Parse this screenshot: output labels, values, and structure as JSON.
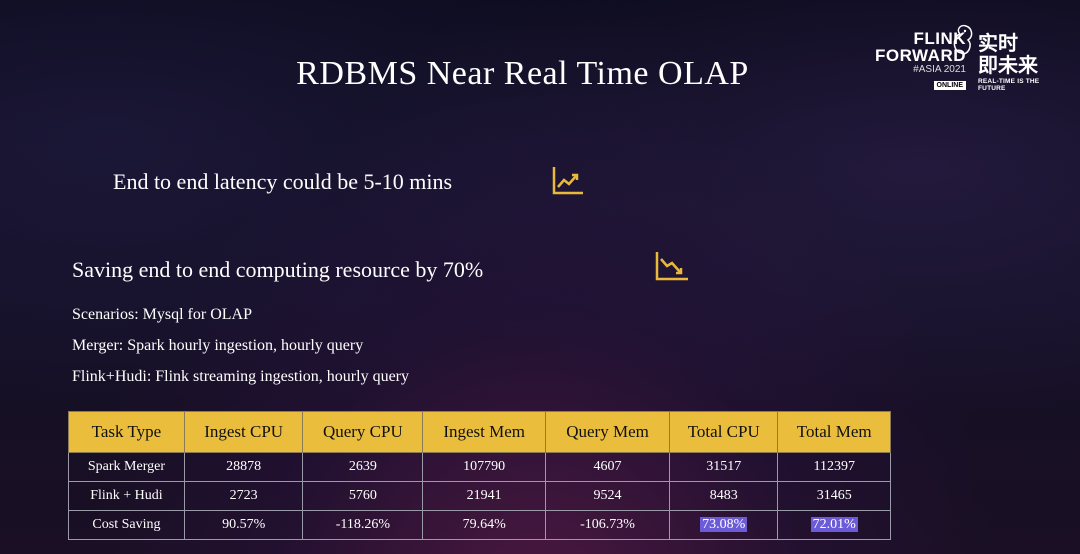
{
  "title": "RDBMS Near Real Time OLAP",
  "logo": {
    "line1": "FLINK",
    "line2": "FORWARD",
    "line3": "#ASIA 2021",
    "badge": "ONLINE",
    "cn_line1": "实时",
    "cn_line2": "即未来",
    "tagline": "REAL-TIME IS THE FUTURE"
  },
  "bullets": {
    "latency": "End to end latency could be 5-10 mins",
    "saving": "Saving end to end computing resource by 70%"
  },
  "icons": {
    "latency": "chart-trend-up-icon",
    "saving": "chart-trend-down-icon",
    "color": "#e9b93b"
  },
  "notes": {
    "scenarios": "Scenarios: Mysql for OLAP",
    "merger": "Merger: Spark hourly ingestion, hourly query",
    "flink_hudi": "Flink+Hudi: Flink streaming ingestion, hourly query"
  },
  "table": {
    "header_color": "#ebbd3c",
    "highlight_color": "#6c5bd6",
    "headers": [
      "Task Type",
      "Ingest CPU",
      "Query CPU",
      "Ingest Mem",
      "Query Mem",
      "Total CPU",
      "Total Mem"
    ],
    "rows": [
      [
        "Spark Merger",
        "28878",
        "2639",
        "107790",
        "4607",
        "31517",
        "112397"
      ],
      [
        "Flink + Hudi",
        "2723",
        "5760",
        "21941",
        "9524",
        "8483",
        "31465"
      ],
      [
        "Cost Saving",
        "90.57%",
        "-118.26%",
        "79.64%",
        "-106.73%",
        "73.08%",
        "72.01%"
      ]
    ]
  }
}
